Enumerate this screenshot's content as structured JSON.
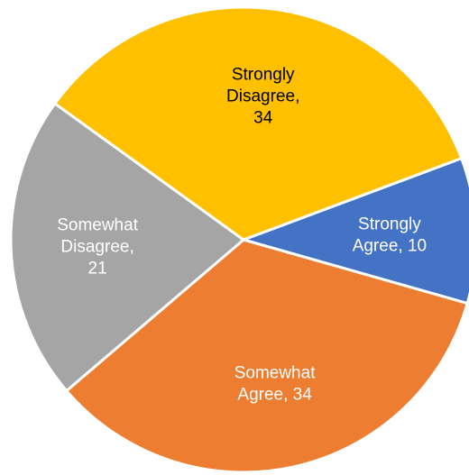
{
  "chart_data": {
    "type": "pie",
    "title": "",
    "legend": "none",
    "categories": [
      "Strongly Agree",
      "Somewhat Agree",
      "Somewhat Disagree",
      "Strongly Disagree"
    ],
    "values": [
      10,
      34,
      21,
      34
    ],
    "labels": [
      {
        "lines": [
          "Strongly",
          "Agree, 10"
        ]
      },
      {
        "lines": [
          "Somewhat",
          "Agree, 34"
        ]
      },
      {
        "lines": [
          "Somewhat",
          "Disagree,",
          "21"
        ]
      },
      {
        "lines": [
          "Strongly",
          "Disagree,",
          "34"
        ]
      }
    ],
    "colors": [
      "#4472C4",
      "#ED7D31",
      "#A5A5A5",
      "#FFC000"
    ],
    "label_colors": [
      "#ffffff",
      "#ffffff",
      "#ffffff",
      "#000000"
    ]
  }
}
